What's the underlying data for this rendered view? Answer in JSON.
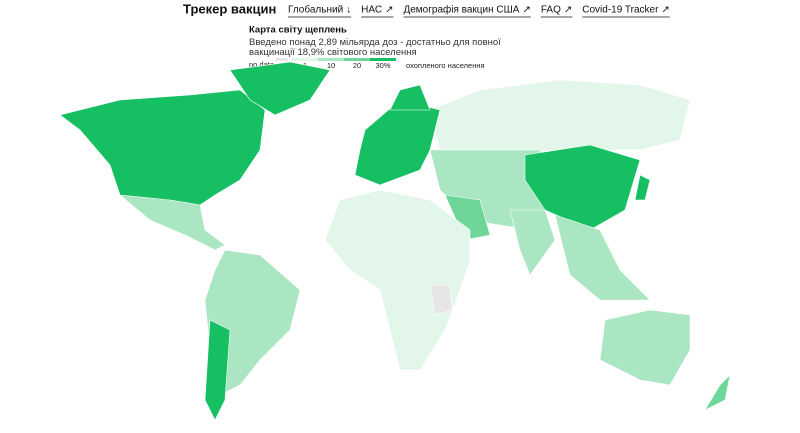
{
  "header": {
    "title": "Трекер вакцин",
    "nav": [
      {
        "label": "Глобальний",
        "icon": "↓"
      },
      {
        "label": "НАС",
        "icon": "↗"
      },
      {
        "label": "Демографія вакцин США",
        "icon": "↗"
      },
      {
        "label": "FAQ",
        "icon": "↗"
      },
      {
        "label": "Covid-19 Tracker",
        "icon": "↗"
      }
    ]
  },
  "map": {
    "title": "Карта світу щеплень",
    "subtitle": "Введено понад 2,89 мільярда доз - достатньо для повної вакцинації 18,9% світового населення",
    "legend": {
      "no_data": "no data",
      "ticks": [
        "1",
        "10",
        "20",
        "30%"
      ],
      "label": "охопленого населення",
      "colors": [
        "#e6e6e6",
        "#e3f6ea",
        "#a9e6c1",
        "#6fd69a",
        "#17bf63"
      ]
    }
  }
}
